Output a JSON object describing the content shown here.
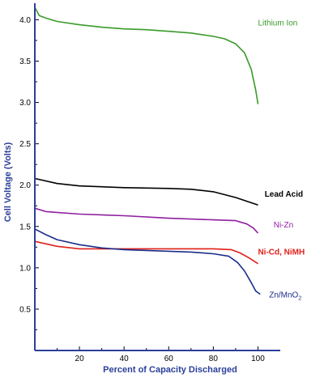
{
  "chart_data": {
    "type": "line",
    "title": "",
    "xlabel": "Percent of Capacity Discharged",
    "ylabel": "Cell Voltage (Volts)",
    "xlim": [
      0,
      110
    ],
    "ylim": [
      0,
      4.2
    ],
    "x_ticks": [
      "20",
      "40",
      "60",
      "80",
      "100"
    ],
    "y_ticks": [
      "0.5",
      "1.0",
      "1.5",
      "2.0",
      "2.5",
      "3.0",
      "3.5",
      "4.0"
    ],
    "axis_color": "#2a3f9a",
    "series": [
      {
        "name": "Lithium Ion",
        "color": "#3a9a2a",
        "points": [
          [
            0,
            4.15
          ],
          [
            2,
            4.05
          ],
          [
            5,
            4.02
          ],
          [
            10,
            3.98
          ],
          [
            20,
            3.94
          ],
          [
            30,
            3.91
          ],
          [
            40,
            3.89
          ],
          [
            50,
            3.88
          ],
          [
            60,
            3.86
          ],
          [
            70,
            3.84
          ],
          [
            80,
            3.8
          ],
          [
            85,
            3.77
          ],
          [
            90,
            3.71
          ],
          [
            94,
            3.6
          ],
          [
            97,
            3.4
          ],
          [
            99,
            3.15
          ],
          [
            100,
            2.98
          ]
        ]
      },
      {
        "name": "Lead Acid",
        "color": "#000000",
        "points": [
          [
            0,
            2.08
          ],
          [
            10,
            2.02
          ],
          [
            20,
            1.99
          ],
          [
            40,
            1.97
          ],
          [
            60,
            1.96
          ],
          [
            70,
            1.95
          ],
          [
            80,
            1.92
          ],
          [
            90,
            1.85
          ],
          [
            100,
            1.76
          ]
        ]
      },
      {
        "name": "Ni-Zn",
        "color": "#8e1f9e",
        "points": [
          [
            0,
            1.72
          ],
          [
            5,
            1.68
          ],
          [
            20,
            1.65
          ],
          [
            40,
            1.63
          ],
          [
            60,
            1.6
          ],
          [
            80,
            1.58
          ],
          [
            90,
            1.57
          ],
          [
            95,
            1.53
          ],
          [
            98,
            1.48
          ],
          [
            100,
            1.42
          ]
        ]
      },
      {
        "name": "Ni-Cd,  NiMH",
        "color": "#e0201a",
        "points": [
          [
            0,
            1.32
          ],
          [
            10,
            1.26
          ],
          [
            20,
            1.23
          ],
          [
            40,
            1.23
          ],
          [
            60,
            1.23
          ],
          [
            80,
            1.23
          ],
          [
            88,
            1.22
          ],
          [
            92,
            1.18
          ],
          [
            96,
            1.12
          ],
          [
            100,
            1.05
          ]
        ]
      },
      {
        "name": "Zn/MnO2",
        "color": "#1a2d8a",
        "points": [
          [
            0,
            1.47
          ],
          [
            5,
            1.4
          ],
          [
            10,
            1.34
          ],
          [
            20,
            1.28
          ],
          [
            30,
            1.24
          ],
          [
            40,
            1.22
          ],
          [
            50,
            1.21
          ],
          [
            60,
            1.2
          ],
          [
            70,
            1.19
          ],
          [
            80,
            1.17
          ],
          [
            87,
            1.14
          ],
          [
            91,
            1.06
          ],
          [
            94,
            0.96
          ],
          [
            97,
            0.82
          ],
          [
            99,
            0.72
          ],
          [
            101,
            0.68
          ]
        ]
      }
    ],
    "series_labels": [
      {
        "text": "Lithium Ion",
        "color": "#3a9a2a",
        "x": 100,
        "y": 3.93,
        "bold": false,
        "sub": ""
      },
      {
        "text": "Lead Acid",
        "color": "#000000",
        "x": 103,
        "y": 1.86,
        "bold": true,
        "sub": ""
      },
      {
        "text": "Ni-Zn",
        "color": "#8e1f9e",
        "x": 107,
        "y": 1.49,
        "bold": false,
        "sub": ""
      },
      {
        "text": "Ni-Cd,  NiMH",
        "color": "#e0201a",
        "x": 100,
        "y": 1.16,
        "bold": true,
        "sub": ""
      },
      {
        "text": "Zn/MnO",
        "color": "#1a2d8a",
        "x": 105,
        "y": 0.64,
        "bold": false,
        "sub": "2"
      }
    ]
  }
}
